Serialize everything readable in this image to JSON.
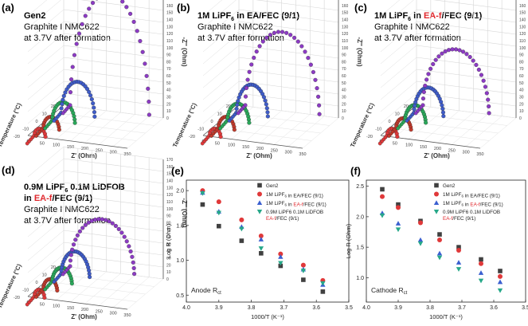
{
  "panels": {
    "a": {
      "letter": "(a)",
      "heading": "Gen2",
      "line1": "Graphite I NMC622",
      "line2": "at 3.7V after formation"
    },
    "b": {
      "letter": "(b)",
      "heading_pre": "1M LiPF",
      "heading_sub": "6",
      "heading_post": " in EA/FEC (9/1)",
      "line1": "Graphite I NMC622",
      "line2": "at 3.7V after formation"
    },
    "c": {
      "letter": "(c)",
      "heading_pre": "1M LiPF",
      "heading_sub": "6",
      "heading_mid": " in ",
      "heading_red": "EA-f",
      "heading_post": "/FEC (9/1)",
      "line1": "Graphite I NMC622",
      "line2": "at 3.7V after formation"
    },
    "d": {
      "letter": "(d)",
      "heading_l1_pre": "0.9M LiPF",
      "heading_l1_sub": "6",
      "heading_l1_post": " 0.1M LiDFOB",
      "heading_l2_pre": "in ",
      "heading_l2_red": "EA-f",
      "heading_l2_post": "/FEC (9/1)",
      "line1": "Graphite I NMC622",
      "line2": "at 3.7V after formation"
    },
    "e": {
      "letter": "(e)"
    },
    "f": {
      "letter": "(f)"
    }
  },
  "axis3d": {
    "z_label": "-Z'' (Ohm)",
    "x_label": "Z' (Ohm)",
    "t_label": "Temperature (°C)",
    "z_ticks": [
      "0",
      "10",
      "20",
      "30",
      "40",
      "50",
      "60",
      "70",
      "80",
      "90",
      "100",
      "110",
      "120",
      "130",
      "140",
      "150",
      "160",
      "170"
    ],
    "x_ticks": [
      "0",
      "50",
      "100",
      "150",
      "200",
      "250",
      "300",
      "350"
    ],
    "t_ticks": [
      "20",
      "10",
      "0",
      "-10",
      "-20"
    ]
  },
  "legend": {
    "gen2": "Gen2",
    "ea_pre": "1M LiPF",
    "ea_sub": "6",
    "ea_post": " in EA/FEC (9/1)",
    "eaf_pre": "1M LiPF",
    "eaf_sub": "6",
    "eaf_mid": " in ",
    "eaf_red": "EA-f",
    "eaf_post": "/FEC (9/1)",
    "lidfob_l1": "0.9M LiPF6 0.1M LiDFOB",
    "lidfob_l2_red": "EA-f",
    "lidfob_l2_post": "/FEC (9/1)"
  },
  "colors": {
    "gen2": "#404040",
    "ea": "#e0393a",
    "eaf": "#3a5fd0",
    "lidfob": "#27a889",
    "red_text": "#e0262b",
    "purple": "#8c3bc4",
    "green3d": "#2aa85a",
    "blue3d": "#3f5cc9"
  },
  "chart_data": [
    {
      "panel": "e",
      "type": "scatter",
      "xlabel": "1000/T (K⁻¹)",
      "ylabel": "Log R (Ohm)",
      "annotation": "Anode R",
      "annotation_sub": "ct",
      "xlim": [
        4.0,
        3.5
      ],
      "ylim": [
        0.4,
        2.15
      ],
      "x_ticks": [
        4.0,
        3.9,
        3.8,
        3.7,
        3.6,
        3.5
      ],
      "y_ticks": [
        0.5,
        1.0,
        1.5,
        2.0
      ],
      "x_tick_labels": [
        "4.0",
        "3.9",
        "3.8",
        "3.7",
        "3.6",
        "3.5"
      ],
      "y_tick_labels": [
        "0.5",
        "1.0",
        "1.5",
        "2.0"
      ],
      "x": [
        3.95,
        3.9,
        3.83,
        3.77,
        3.71,
        3.64,
        3.58
      ],
      "series": [
        {
          "name": "Gen2",
          "marker": "square",
          "color": "#404040",
          "values": [
            1.8,
            1.49,
            1.28,
            1.1,
            0.92,
            0.72,
            0.55
          ]
        },
        {
          "name": "1M LiPF6 in EA/FEC (9/1)",
          "marker": "circle",
          "color": "#e0393a",
          "values": [
            2.0,
            1.84,
            1.58,
            1.35,
            1.09,
            0.93,
            0.71
          ]
        },
        {
          "name": "1M LiPF6 in EA-f/FEC (9/1)",
          "marker": "triangle-up",
          "color": "#3a5fd0",
          "values": [
            1.97,
            1.7,
            1.48,
            1.3,
            1.05,
            0.87,
            0.65
          ]
        },
        {
          "name": "0.9M LiPF6 0.1M LiDFOB in EA-f/FEC (9/1)",
          "marker": "triangle-down",
          "color": "#27a889",
          "values": [
            1.96,
            1.68,
            1.45,
            1.17,
            0.96,
            0.85,
            0.67
          ]
        }
      ]
    },
    {
      "panel": "f",
      "type": "scatter",
      "xlabel": "1000/T (K⁻¹)",
      "ylabel": "Log R (Ohm)",
      "annotation": "Cathode R",
      "annotation_sub": "ct",
      "xlim": [
        4.0,
        3.5
      ],
      "ylim": [
        0.6,
        2.6
      ],
      "x_ticks": [
        4.0,
        3.9,
        3.8,
        3.7,
        3.6,
        3.5
      ],
      "y_ticks": [
        1.0,
        1.5,
        2.0,
        2.5
      ],
      "x_tick_labels": [
        "4.0",
        "3.9",
        "3.8",
        "3.7",
        "3.6",
        "3.5"
      ],
      "y_tick_labels": [
        "1.0",
        "1.5",
        "2.0",
        "2.5"
      ],
      "x": [
        3.95,
        3.9,
        3.83,
        3.77,
        3.71,
        3.64,
        3.58
      ],
      "series": [
        {
          "name": "Gen2",
          "marker": "square",
          "color": "#404040",
          "values": [
            2.45,
            2.2,
            1.93,
            1.71,
            1.5,
            1.3,
            1.11
          ]
        },
        {
          "name": "1M LiPF6 in EA/FEC (9/1)",
          "marker": "circle",
          "color": "#e0393a",
          "values": [
            2.33,
            2.15,
            1.9,
            1.62,
            1.45,
            1.23,
            1.02
          ]
        },
        {
          "name": "1M LiPF6 in EA-f/FEC (9/1)",
          "marker": "triangle-up",
          "color": "#3a5fd0",
          "values": [
            2.06,
            1.89,
            1.62,
            1.4,
            1.25,
            1.08,
            0.93
          ]
        },
        {
          "name": "0.9M LiPF6 0.1M LiDFOB in EA-f/FEC (9/1)",
          "marker": "triangle-down",
          "color": "#27a889",
          "values": [
            2.02,
            1.79,
            1.56,
            1.33,
            1.14,
            0.95,
            0.79
          ]
        }
      ]
    }
  ]
}
